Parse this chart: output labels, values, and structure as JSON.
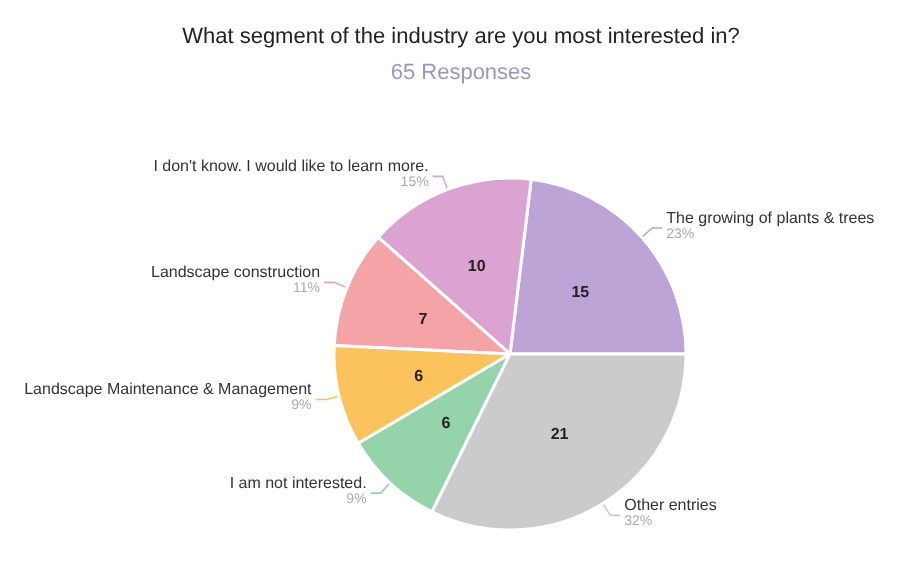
{
  "chart_data": {
    "type": "pie",
    "title": "What segment of the industry are you most interested in?",
    "subtitle": "65 Responses",
    "categories": [
      "The growing of plants & trees",
      "I don't know. I would like to learn more.",
      "Landscape construction",
      "Landscape Maintenance & Management",
      "I am not interested.",
      "Other entries"
    ],
    "values": [
      15,
      10,
      7,
      6,
      6,
      21
    ],
    "annotations": [
      "23%",
      "15%",
      "11%",
      "9%",
      "9%",
      "32%"
    ],
    "colors": [
      "#bda4d6",
      "#dba3d2",
      "#f4a3a6",
      "#fcc25c",
      "#95d4ab",
      "#cbcbcb"
    ],
    "data_labels": true,
    "legend": false
  }
}
